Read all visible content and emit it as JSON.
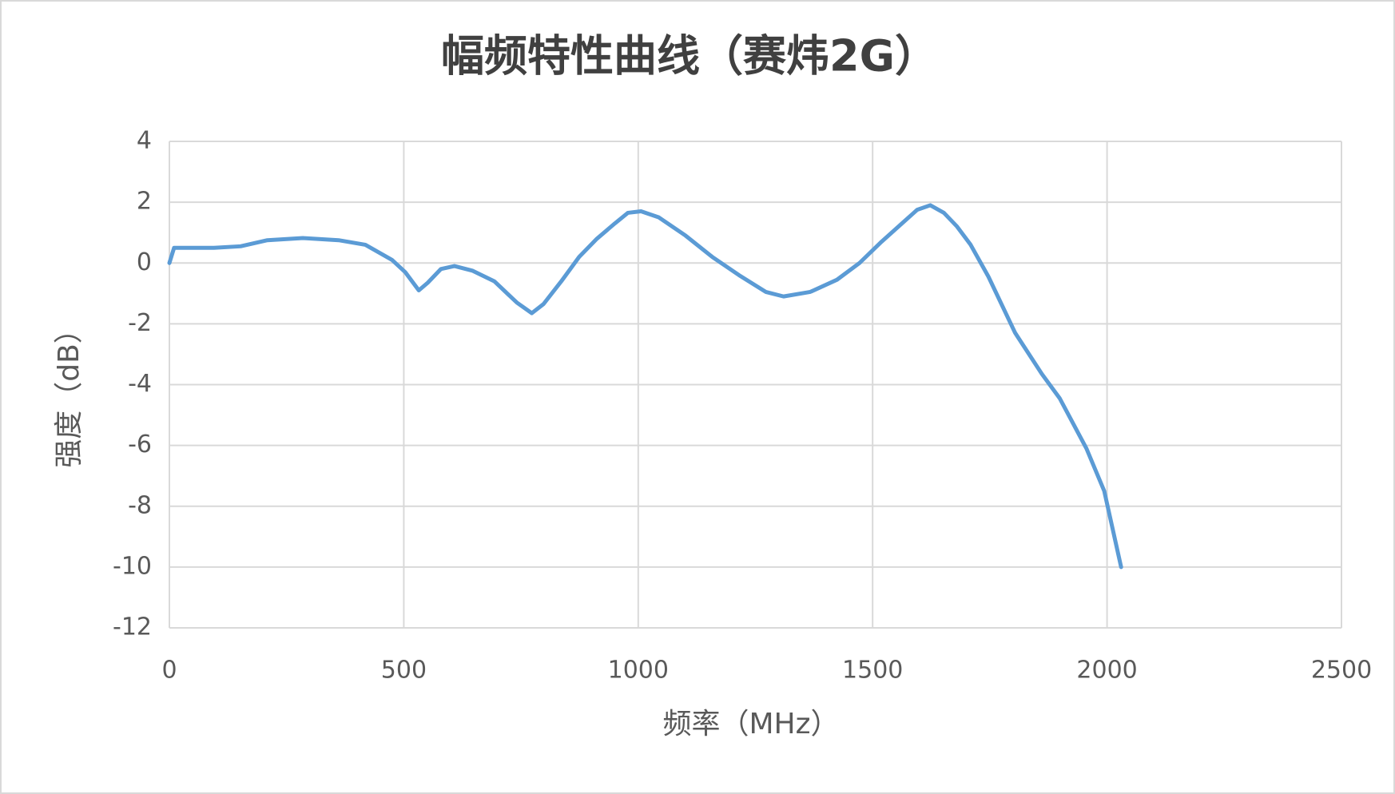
{
  "chart_data": {
    "type": "line",
    "title": "幅频特性曲线（赛炜2G）",
    "x_label": "频率（MHz）",
    "y_label": "强度（dB）",
    "series": [
      {
        "name": "强度",
        "color": "#5b9bd5",
        "x": [
          0,
          10,
          38,
          95,
          152,
          209,
          285,
          361,
          418,
          475,
          503,
          532,
          551,
          579,
          608,
          646,
          693,
          741,
          773,
          798,
          836,
          874,
          912,
          950,
          978,
          1006,
          1044,
          1101,
          1158,
          1215,
          1272,
          1310,
          1367,
          1424,
          1472,
          1519,
          1566,
          1595,
          1623,
          1652,
          1680,
          1709,
          1747,
          1804,
          1861,
          1899,
          1956,
          1994,
          2030
        ],
        "values": [
          0,
          0.5,
          0.5,
          0.5,
          0.55,
          0.75,
          0.82,
          0.75,
          0.6,
          0.1,
          -0.3,
          -0.9,
          -0.65,
          -0.2,
          -0.1,
          -0.25,
          -0.6,
          -1.3,
          -1.65,
          -1.35,
          -0.6,
          0.2,
          0.8,
          1.3,
          1.65,
          1.7,
          1.5,
          0.9,
          0.2,
          -0.4,
          -0.95,
          -1.1,
          -0.95,
          -0.55,
          0.0,
          0.7,
          1.35,
          1.75,
          1.9,
          1.65,
          1.2,
          0.6,
          -0.45,
          -2.3,
          -3.65,
          -4.45,
          -6.1,
          -7.5,
          -10.0
        ]
      }
    ],
    "xlim": [
      0,
      2500
    ],
    "xticks": [
      0,
      500,
      1000,
      1500,
      2000,
      2500
    ],
    "ylim": [
      -12,
      4
    ],
    "yticks": [
      -12,
      -10,
      -8,
      -6,
      -4,
      -2,
      0,
      2,
      4
    ],
    "grid": true
  }
}
